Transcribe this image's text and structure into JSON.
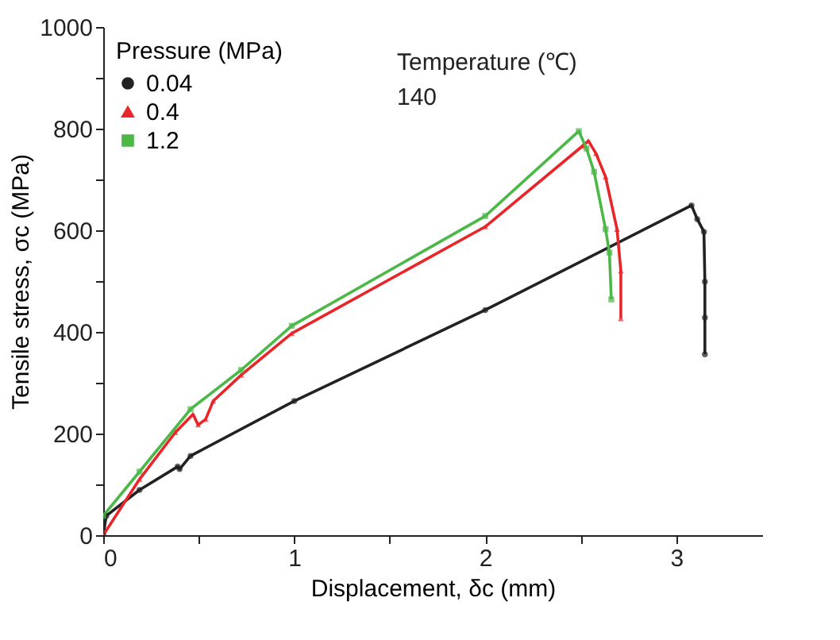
{
  "chart_data": {
    "type": "line",
    "xlabel": "Displacement, δc (mm)",
    "ylabel": "Tensile stress, σc (MPa)",
    "legend_title": "Pressure (MPa)",
    "annotations": [
      "Temperature (℃)",
      "140"
    ],
    "series": [
      {
        "name": "0.04",
        "color": "#222222",
        "marker": "circle",
        "x": [
          0,
          0.016,
          0.19,
          0.39,
          0.4,
          0.457,
          1.0,
          2.0,
          3.08,
          3.11,
          3.145,
          3.15,
          3.15,
          3.15
        ],
        "values": [
          0,
          38,
          89,
          135,
          130,
          156,
          264,
          443,
          649,
          622,
          597,
          499,
          428,
          356
        ]
      },
      {
        "name": "0.4",
        "color": "#e8262a",
        "marker": "triangle",
        "x": [
          0,
          0.19,
          0.377,
          0.47,
          0.497,
          0.536,
          0.576,
          0.722,
          0.987,
          2.0,
          2.51,
          2.54,
          2.58,
          2.63,
          2.69,
          2.71,
          2.71
        ],
        "values": [
          0,
          110,
          202,
          238,
          217,
          228,
          264,
          315,
          397,
          607,
          766,
          776,
          751,
          705,
          602,
          520,
          426
        ]
      },
      {
        "name": "1.2",
        "color": "#4cb848",
        "marker": "square",
        "x": [
          0,
          0.19,
          0.457,
          0.722,
          0.987,
          2.0,
          2.49,
          2.53,
          2.57,
          2.63,
          2.65,
          2.66
        ],
        "values": [
          38,
          125,
          248,
          325,
          412,
          628,
          795,
          761,
          715,
          602,
          556,
          464
        ]
      }
    ],
    "xlim": [
      0,
      3.45
    ],
    "xticks": [
      0,
      {
        "value": 0.5,
        "label": null
      },
      1,
      {
        "value": 1.5,
        "label": null
      },
      2,
      {
        "value": 2.5,
        "label": null
      },
      3
    ],
    "ylim": [
      0,
      1000
    ],
    "yticks": [
      0,
      {
        "value": 100,
        "label": null
      },
      200,
      {
        "value": 300,
        "label": null
      },
      400,
      {
        "value": 500,
        "label": null
      },
      600,
      {
        "value": 700,
        "label": null
      },
      800,
      {
        "value": 900,
        "label": null
      },
      1000
    ],
    "grid": false,
    "legend": "top left"
  }
}
